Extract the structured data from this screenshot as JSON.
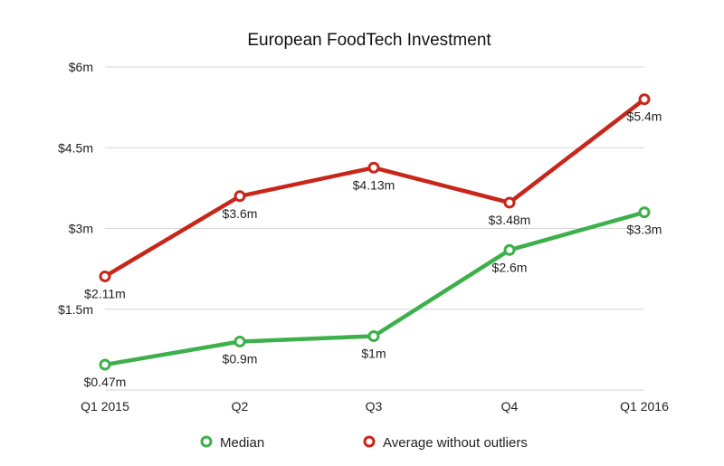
{
  "chart_data": {
    "type": "line",
    "title": "European FoodTech Investment",
    "categories": [
      "Q1 2015",
      "Q2",
      "Q3",
      "Q4",
      "Q1 2016"
    ],
    "yticks": [
      "$6m",
      "$4.5m",
      "$3m",
      "$1.5m"
    ],
    "ytick_values": [
      6,
      4.5,
      3,
      1.5
    ],
    "ylim": [
      0,
      6
    ],
    "grid": true,
    "legend_position": "bottom",
    "series": [
      {
        "name": "Median",
        "color": "#3cb04a",
        "values": [
          0.47,
          0.9,
          1.0,
          2.6,
          3.3
        ],
        "labels": [
          "$0.47m",
          "$0.9m",
          "$1m",
          "$2.6m",
          "$3.3m"
        ]
      },
      {
        "name": "Average without outliers",
        "color": "#c8261b",
        "values": [
          2.11,
          3.6,
          4.13,
          3.48,
          5.4
        ],
        "labels": [
          "$2.11m",
          "$3.6m",
          "$4.13m",
          "$3.48m",
          "$5.4m"
        ]
      }
    ]
  }
}
